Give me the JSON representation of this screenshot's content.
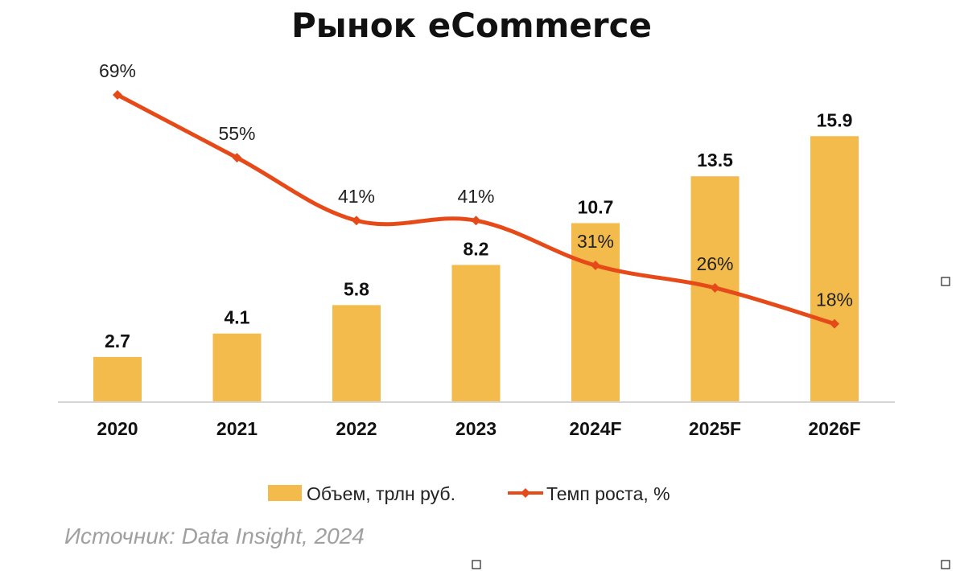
{
  "chart_data": {
    "type": "bar",
    "title": "Рынок eCommerce",
    "categories": [
      "2020",
      "2021",
      "2022",
      "2023",
      "2024F",
      "2025F",
      "2026F"
    ],
    "series": [
      {
        "name": "Объем, трлн руб.",
        "type": "bar",
        "values": [
          2.7,
          4.1,
          5.8,
          8.2,
          10.7,
          13.5,
          15.9
        ],
        "labels": [
          "2.7",
          "4.1",
          "5.8",
          "8.2",
          "10.7",
          "13.5",
          "15.9"
        ],
        "color": "#F3BB4B"
      },
      {
        "name": "Темп роста, %",
        "type": "line",
        "values": [
          69,
          55,
          41,
          41,
          31,
          26,
          18
        ],
        "labels": [
          "69%",
          "55%",
          "41%",
          "41%",
          "31%",
          "26%",
          "18%"
        ],
        "color": "#E64A19",
        "marker": "diamond",
        "smooth": true
      }
    ],
    "legend_position": "bottom",
    "grid": false,
    "source": "Источник: Data Insight, 2024"
  }
}
